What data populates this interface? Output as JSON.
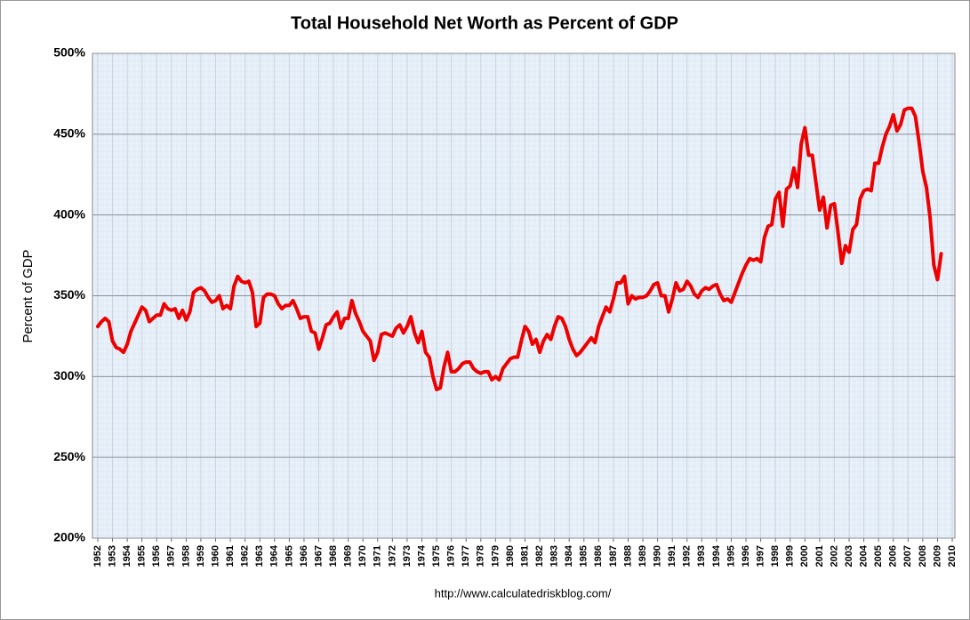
{
  "chart_data": {
    "type": "line",
    "title": "Total Household Net Worth as Percent of GDP",
    "y_label": "Percent of GDP",
    "source": "http://www.calculatedriskblog.com/",
    "xlim": [
      1951.64,
      2010.18
    ],
    "xticks": [
      1952,
      1953,
      1954,
      1955,
      1956,
      1957,
      1958,
      1959,
      1960,
      1961,
      1962,
      1963,
      1964,
      1965,
      1966,
      1967,
      1968,
      1969,
      1970,
      1971,
      1972,
      1973,
      1974,
      1975,
      1976,
      1977,
      1978,
      1979,
      1980,
      1981,
      1982,
      1983,
      1984,
      1985,
      1986,
      1987,
      1988,
      1989,
      1990,
      1991,
      1992,
      1993,
      1994,
      1995,
      1996,
      1997,
      1998,
      1999,
      2000,
      2001,
      2002,
      2003,
      2004,
      2005,
      2006,
      2007,
      2008,
      2009,
      2010
    ],
    "ylim": [
      200,
      500
    ],
    "yticks": [
      {
        "value": 200,
        "label": "200%"
      },
      {
        "value": 250,
        "label": "250%"
      },
      {
        "value": 300,
        "label": "300%"
      },
      {
        "value": 350,
        "label": "350%"
      },
      {
        "value": 400,
        "label": "400%"
      },
      {
        "value": 450,
        "label": "450%"
      },
      {
        "value": 500,
        "label": "500%"
      }
    ],
    "grid": true,
    "x": [
      1952,
      1952.25,
      1952.5,
      1952.75,
      1953,
      1953.25,
      1953.5,
      1953.75,
      1954,
      1954.25,
      1954.5,
      1954.75,
      1955,
      1955.25,
      1955.5,
      1955.75,
      1956,
      1956.25,
      1956.5,
      1956.75,
      1957,
      1957.25,
      1957.5,
      1957.75,
      1958,
      1958.25,
      1958.5,
      1958.75,
      1959,
      1959.25,
      1959.5,
      1959.75,
      1960,
      1960.25,
      1960.5,
      1960.75,
      1961,
      1961.25,
      1961.5,
      1961.75,
      1962,
      1962.25,
      1962.5,
      1962.75,
      1963,
      1963.25,
      1963.5,
      1963.75,
      1964,
      1964.25,
      1964.5,
      1964.75,
      1965,
      1965.25,
      1965.5,
      1965.75,
      1966,
      1966.25,
      1966.5,
      1966.75,
      1967,
      1967.25,
      1967.5,
      1967.75,
      1968,
      1968.25,
      1968.5,
      1968.75,
      1969,
      1969.25,
      1969.5,
      1969.75,
      1970,
      1970.25,
      1970.5,
      1970.75,
      1971,
      1971.25,
      1971.5,
      1971.75,
      1972,
      1972.25,
      1972.5,
      1972.75,
      1973,
      1973.25,
      1973.5,
      1973.75,
      1974,
      1974.25,
      1974.5,
      1974.75,
      1975,
      1975.25,
      1975.5,
      1975.75,
      1976,
      1976.25,
      1976.5,
      1976.75,
      1977,
      1977.25,
      1977.5,
      1977.75,
      1978,
      1978.25,
      1978.5,
      1978.75,
      1979,
      1979.25,
      1979.5,
      1979.75,
      1980,
      1980.25,
      1980.5,
      1980.75,
      1981,
      1981.25,
      1981.5,
      1981.75,
      1982,
      1982.25,
      1982.5,
      1982.75,
      1983,
      1983.25,
      1983.5,
      1983.75,
      1984,
      1984.25,
      1984.5,
      1984.75,
      1985,
      1985.25,
      1985.5,
      1985.75,
      1986,
      1986.25,
      1986.5,
      1986.75,
      1987,
      1987.25,
      1987.5,
      1987.75,
      1988,
      1988.25,
      1988.5,
      1988.75,
      1989,
      1989.25,
      1989.5,
      1989.75,
      1990,
      1990.25,
      1990.5,
      1990.75,
      1991,
      1991.25,
      1991.5,
      1991.75,
      1992,
      1992.25,
      1992.5,
      1992.75,
      1993,
      1993.25,
      1993.5,
      1993.75,
      1994,
      1994.25,
      1994.5,
      1994.75,
      1995,
      1995.25,
      1995.5,
      1995.75,
      1996,
      1996.25,
      1996.5,
      1996.75,
      1997,
      1997.25,
      1997.5,
      1997.75,
      1998,
      1998.25,
      1998.5,
      1998.75,
      1999,
      1999.25,
      1999.5,
      1999.75,
      2000,
      2000.25,
      2000.5,
      2000.75,
      2001,
      2001.25,
      2001.5,
      2001.75,
      2002,
      2002.25,
      2002.5,
      2002.75,
      2003,
      2003.25,
      2003.5,
      2003.75,
      2004,
      2004.25,
      2004.5,
      2004.75,
      2005,
      2005.25,
      2005.5,
      2005.75,
      2006,
      2006.25,
      2006.5,
      2006.75,
      2007,
      2007.25,
      2007.5,
      2007.75,
      2008,
      2008.25,
      2008.5,
      2008.75,
      2009,
      2009.25
    ],
    "series": [
      {
        "name": "Household Net Worth",
        "color": "#ee0000",
        "values": [
          331,
          334,
          336,
          334,
          322,
          318,
          317,
          315,
          320,
          328,
          333,
          338,
          343,
          341,
          334,
          336,
          338,
          338,
          345,
          342,
          341,
          342,
          336,
          341,
          335,
          340,
          352,
          354,
          355,
          353,
          349,
          346,
          347,
          350,
          342,
          344,
          342,
          356,
          362,
          359,
          358,
          359,
          352,
          331,
          333,
          349,
          351,
          351,
          350,
          345,
          342,
          344,
          344,
          347,
          342,
          336,
          337,
          337,
          328,
          327,
          317,
          324,
          332,
          333,
          337,
          340,
          330,
          336,
          336,
          347,
          339,
          334,
          328,
          325,
          322,
          310,
          315,
          326,
          327,
          326,
          325,
          330,
          332,
          327,
          331,
          337,
          327,
          321,
          328,
          315,
          312,
          300,
          292,
          293,
          306,
          315,
          303,
          303,
          305,
          308,
          309,
          309,
          305,
          303,
          302,
          303,
          303,
          298,
          300,
          298,
          305,
          308,
          311,
          312,
          312,
          322,
          331,
          328,
          320,
          323,
          315,
          322,
          326,
          323,
          331,
          337,
          336,
          331,
          323,
          317,
          313,
          315,
          318,
          321,
          324,
          321,
          331,
          337,
          343,
          340,
          348,
          358,
          358,
          362,
          345,
          350,
          348,
          349,
          349,
          350,
          353,
          357,
          358,
          350,
          350,
          340,
          348,
          358,
          353,
          354,
          359,
          356,
          351,
          349,
          353,
          355,
          354,
          356,
          357,
          351,
          347,
          348,
          346,
          352,
          358,
          364,
          369,
          373,
          372,
          373,
          371,
          386,
          393,
          394,
          410,
          414,
          393,
          416,
          418,
          429,
          417,
          444,
          454,
          437,
          437,
          420,
          403,
          411,
          392,
          406,
          407,
          389,
          370,
          381,
          377,
          391,
          394,
          410,
          415,
          416,
          415,
          432,
          432,
          442,
          450,
          455,
          462,
          452,
          456,
          465,
          466,
          466,
          461,
          445,
          427,
          417,
          398,
          369,
          360,
          376
        ]
      }
    ]
  }
}
